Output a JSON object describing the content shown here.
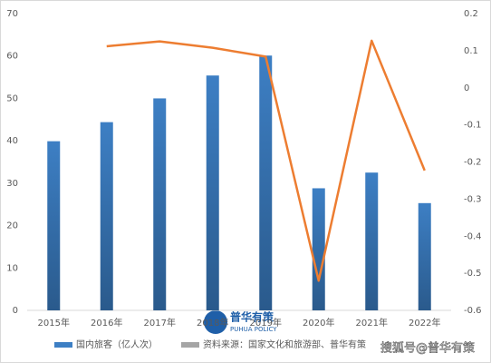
{
  "chart_data": {
    "type": "bar-line",
    "categories": [
      "2015年",
      "2016年",
      "2017年",
      "2018年",
      "2019年",
      "2020年",
      "2021年",
      "2022年"
    ],
    "series": [
      {
        "name": "国内旅客（亿人次）",
        "color": "#3d7fc4",
        "type": "bar",
        "values": [
          39.9,
          44.4,
          50.0,
          55.4,
          60.1,
          28.8,
          32.5,
          25.3
        ]
      },
      {
        "name": "资料来源：国家文化和旅游部、普华有策",
        "color": "#ed7d31",
        "legend_color": "#a5a5a5",
        "type": "line",
        "axis": "y2",
        "values": [
          null,
          0.112,
          0.125,
          0.108,
          0.084,
          -0.52,
          0.127,
          -0.223
        ]
      }
    ],
    "ylim": [
      0,
      70
    ],
    "yticks": [
      0,
      10,
      20,
      30,
      40,
      50,
      60,
      70
    ],
    "y2lim": [
      -0.6,
      0.2
    ],
    "y2ticks": [
      -0.6,
      -0.5,
      -0.4,
      -0.3,
      -0.2,
      -0.1,
      0,
      0.1,
      0.2
    ],
    "grid": false,
    "watermarks": [
      "普华有策",
      "PUHUA POLICY",
      "搜狐号@普华有策"
    ]
  }
}
